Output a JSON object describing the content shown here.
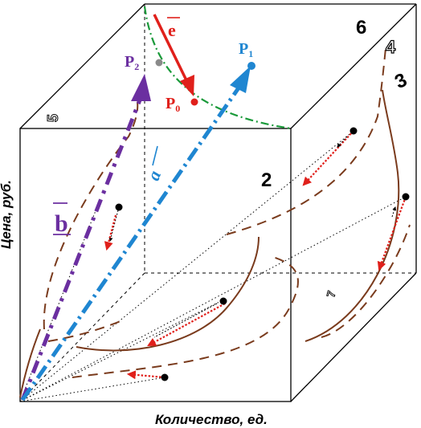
{
  "axes": {
    "y_label": "Цена, руб.",
    "x_label": "Количество, ед."
  },
  "points": {
    "p0": "P",
    "p0_sub": "0",
    "p1": "P",
    "p1_sub": "1",
    "p2": "P",
    "p2_sub": "2"
  },
  "vectors": {
    "e": "e",
    "a": "a",
    "b": "b"
  },
  "region_numbers": {
    "n2": "2",
    "n3": "3",
    "n4": "4",
    "n5": "5",
    "n6": "6",
    "n7": "7"
  },
  "colors": {
    "frame": "#000000",
    "curve": "#7a3b1d",
    "vector_a": "#1f86d1",
    "vector_b": "#6b2fa0",
    "vector_e": "#e0201b",
    "arc_green": "#1a9a3a",
    "dotted_red": "#e0201b"
  }
}
